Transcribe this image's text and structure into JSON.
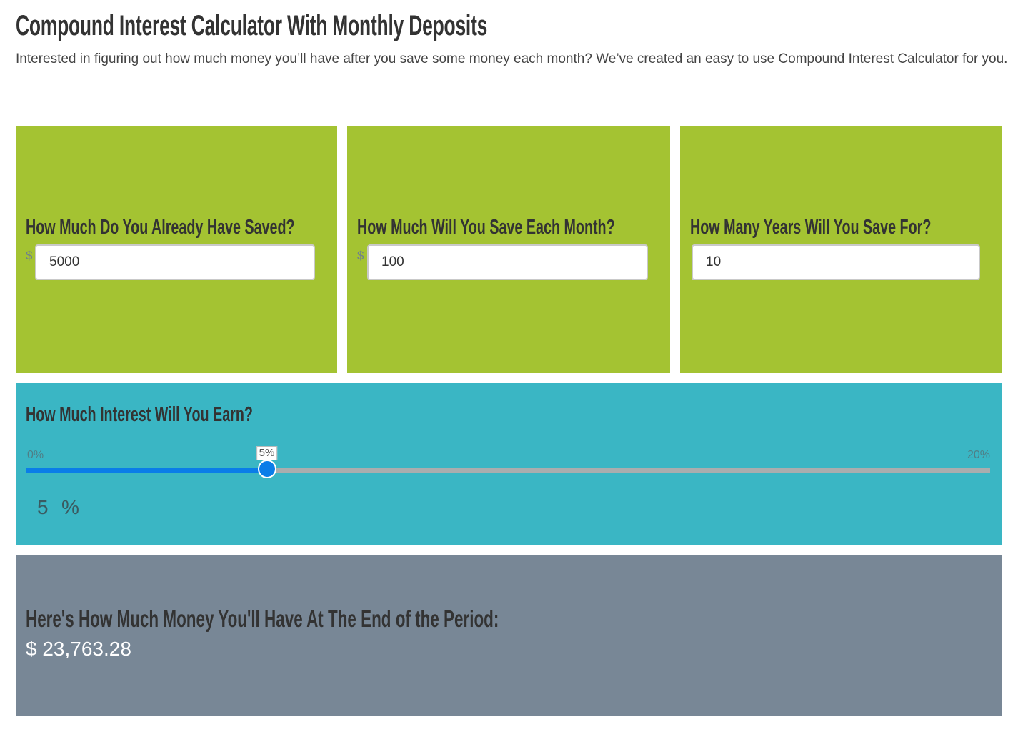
{
  "page": {
    "title": "Compound Interest Calculator With Monthly Deposits",
    "intro": "Interested in figuring out how much money you’ll have after you save some money each month?  We’ve created an easy to use Compound Interest Calculator for you."
  },
  "colors": {
    "input_panel": "#a4c332",
    "interest_panel": "#3ab6c4",
    "result_panel": "#788796",
    "slider_fill": "#0a7de8",
    "slider_track": "#a9adae"
  },
  "inputs": {
    "saved": {
      "label": "How Much Do You Already Have Saved?",
      "currency": "$",
      "value": "5000"
    },
    "monthly": {
      "label": "How Much Will You Save Each Month?",
      "currency": "$",
      "value": "100"
    },
    "years": {
      "label": "How Many Years Will You Save For?",
      "value": "10"
    }
  },
  "interest": {
    "label": "How Much Interest Will You Earn?",
    "min_label": "0%",
    "max_label": "20%",
    "min": 0,
    "max": 20,
    "value": 5,
    "tooltip": "5%",
    "value_text": "5",
    "unit": "%"
  },
  "result": {
    "label": "Here's How Much Money You'll Have At The End of the Period:",
    "amount": "$ 23,763.28"
  }
}
